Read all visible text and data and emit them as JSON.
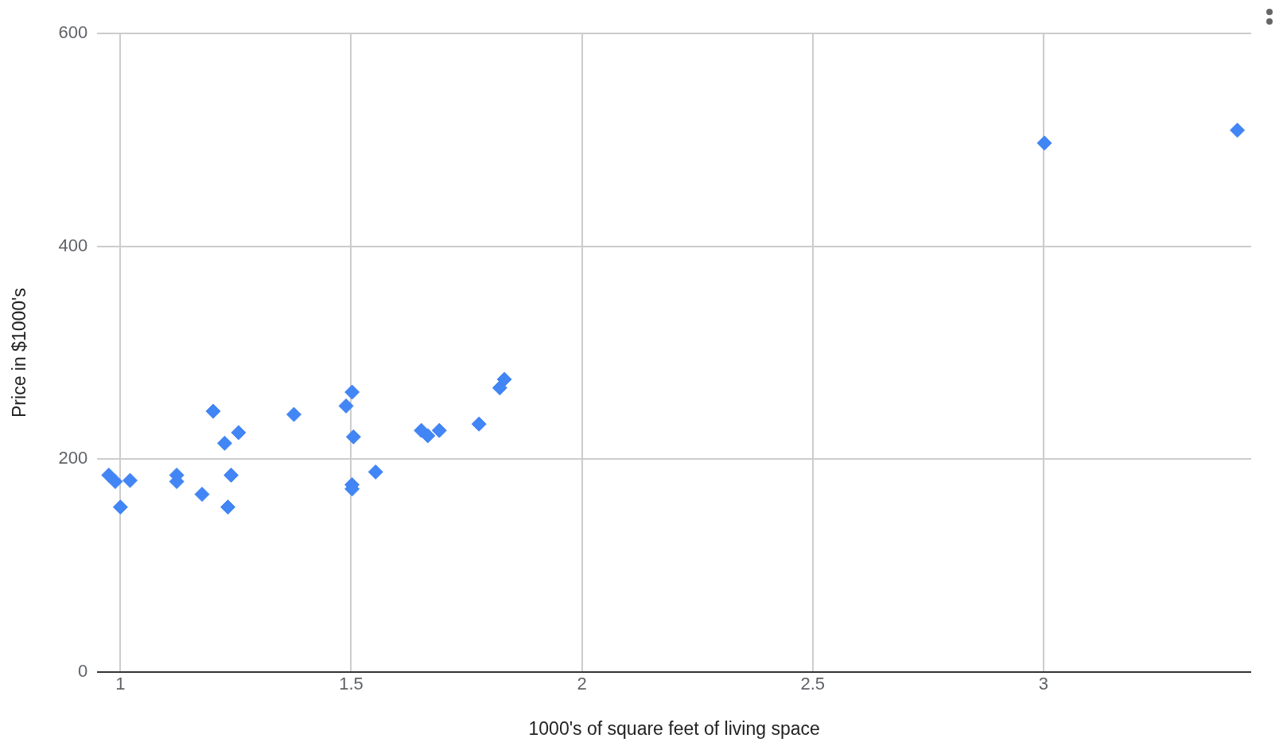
{
  "chart_data": {
    "type": "scatter",
    "xlabel": "1000's of square feet of living space",
    "ylabel": "Price in $1000's",
    "x": [
      0.975,
      0.989,
      1.0,
      1.021,
      1.122,
      1.122,
      1.177,
      1.201,
      1.226,
      1.233,
      1.24,
      1.256,
      1.376,
      1.489,
      1.502,
      1.505,
      1.502,
      1.502,
      1.553,
      1.652,
      1.666,
      1.691,
      1.777,
      1.822,
      1.832,
      3.002,
      3.42
    ],
    "series": [
      {
        "color": "#4285f4",
        "values": [
          185,
          179,
          155,
          180,
          185,
          179,
          167,
          245,
          215,
          155,
          185,
          225,
          242,
          250,
          263,
          221,
          176,
          172,
          188,
          227,
          222,
          227,
          233,
          267,
          275,
          497,
          509
        ]
      }
    ],
    "xlim": [
      0.95,
      3.45
    ],
    "xticks": [
      1,
      1.5,
      2,
      2.5,
      3
    ],
    "ylim": [
      0,
      600
    ],
    "yticks": [
      0,
      200,
      400,
      600
    ],
    "grid": true,
    "marker": "diamond",
    "legend": false
  }
}
